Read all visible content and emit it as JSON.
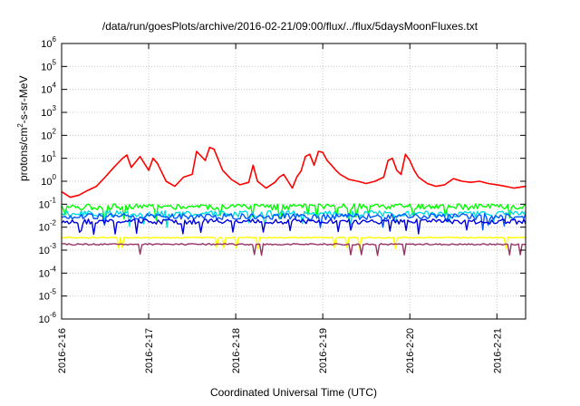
{
  "chart_data": {
    "type": "line",
    "title": "/data/run/goesPlots/archive/2016-02-21/09:00/flux/../flux/5daysMoonFluxes.txt",
    "xlabel": "Coordinated Universal Time (UTC)",
    "ylabel": {
      "base": "protons/cm",
      "exp": "2",
      "rest": "-s-sr-MeV"
    },
    "x_ticks": [
      "2016-2-16",
      "2016-2-17",
      "2016-2-18",
      "2016-2-19",
      "2016-2-20",
      "2016-2-21"
    ],
    "x_range_days": [
      0,
      5.33
    ],
    "y_scale": "log",
    "y_ticks": [
      {
        "base": "10",
        "exp": "6",
        "value": 1000000.0
      },
      {
        "base": "10",
        "exp": "5",
        "value": 100000.0
      },
      {
        "base": "10",
        "exp": "4",
        "value": 10000.0
      },
      {
        "base": "10",
        "exp": "3",
        "value": 1000.0
      },
      {
        "base": "10",
        "exp": "2",
        "value": 100.0
      },
      {
        "base": "10",
        "exp": "1",
        "value": 10.0
      },
      {
        "base": "10",
        "exp": "0",
        "value": 1.0
      },
      {
        "base": "10",
        "exp": "-1",
        "value": 0.1
      },
      {
        "base": "10",
        "exp": "-2",
        "value": 0.01
      },
      {
        "base": "10",
        "exp": "-3",
        "value": 0.001
      },
      {
        "base": "10",
        "exp": "-4",
        "value": 0.0001
      },
      {
        "base": "10",
        "exp": "-5",
        "value": 1e-05
      },
      {
        "base": "10",
        "exp": "-6",
        "value": 1e-06
      }
    ],
    "ylim": [
      1e-06,
      1000000.0
    ],
    "grid": true,
    "series": [
      {
        "color": "#ff0000",
        "points": [
          [
            0,
            0.35
          ],
          [
            0.1,
            0.2
          ],
          [
            0.2,
            0.25
          ],
          [
            0.3,
            0.4
          ],
          [
            0.4,
            0.6
          ],
          [
            0.5,
            1.5
          ],
          [
            0.6,
            4
          ],
          [
            0.7,
            10
          ],
          [
            0.75,
            14
          ],
          [
            0.8,
            4
          ],
          [
            0.9,
            12
          ],
          [
            1.0,
            3
          ],
          [
            1.05,
            10
          ],
          [
            1.1,
            6
          ],
          [
            1.2,
            1
          ],
          [
            1.3,
            0.6
          ],
          [
            1.4,
            1.5
          ],
          [
            1.5,
            2
          ],
          [
            1.55,
            20
          ],
          [
            1.65,
            8
          ],
          [
            1.7,
            30
          ],
          [
            1.75,
            25
          ],
          [
            1.85,
            3
          ],
          [
            1.95,
            1.2
          ],
          [
            2.05,
            0.7
          ],
          [
            2.15,
            0.9
          ],
          [
            2.2,
            5
          ],
          [
            2.25,
            1
          ],
          [
            2.35,
            0.5
          ],
          [
            2.45,
            0.9
          ],
          [
            2.5,
            1.5
          ],
          [
            2.55,
            2
          ],
          [
            2.6,
            1
          ],
          [
            2.65,
            0.5
          ],
          [
            2.7,
            1.5
          ],
          [
            2.75,
            2.8
          ],
          [
            2.8,
            12
          ],
          [
            2.85,
            15
          ],
          [
            2.9,
            5
          ],
          [
            2.95,
            20
          ],
          [
            3.0,
            18
          ],
          [
            3.05,
            8
          ],
          [
            3.1,
            5
          ],
          [
            3.15,
            3
          ],
          [
            3.2,
            2
          ],
          [
            3.3,
            1.2
          ],
          [
            3.4,
            1
          ],
          [
            3.5,
            0.8
          ],
          [
            3.6,
            1
          ],
          [
            3.7,
            1.5
          ],
          [
            3.75,
            8
          ],
          [
            3.8,
            10
          ],
          [
            3.85,
            3
          ],
          [
            3.9,
            2
          ],
          [
            3.95,
            15
          ],
          [
            4.0,
            8
          ],
          [
            4.05,
            3
          ],
          [
            4.1,
            1.5
          ],
          [
            4.2,
            0.8
          ],
          [
            4.3,
            0.6
          ],
          [
            4.4,
            0.7
          ],
          [
            4.5,
            1.3
          ],
          [
            4.6,
            1
          ],
          [
            4.7,
            0.9
          ],
          [
            4.8,
            1
          ],
          [
            4.9,
            0.8
          ],
          [
            5.0,
            0.7
          ],
          [
            5.1,
            0.6
          ],
          [
            5.2,
            0.5
          ],
          [
            5.33,
            0.6
          ]
        ]
      },
      {
        "color": "#00ff00",
        "base": 0.08,
        "amp": 0.6
      },
      {
        "color": "#00dddd",
        "base": 0.04,
        "amp": 0.6
      },
      {
        "color": "#0055ff",
        "base": 0.03,
        "amp": 0.6
      },
      {
        "color": "#0000dd",
        "base": 0.018,
        "amp": 0.5
      },
      {
        "color": "#ffff00",
        "base": 0.0035,
        "amp": 0.1
      },
      {
        "color": "#993366",
        "base": 0.0018,
        "amp": 0.15
      }
    ]
  }
}
